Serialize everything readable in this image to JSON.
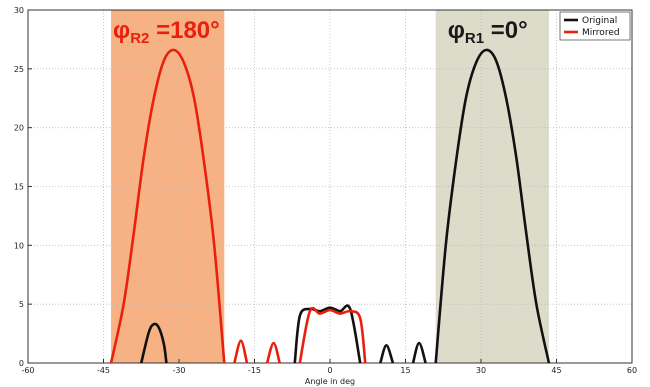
{
  "chart_data": {
    "type": "line",
    "title": "",
    "xlabel": "Angle in deg",
    "ylabel": "",
    "xlim": [
      -60,
      60
    ],
    "ylim": [
      0,
      30
    ],
    "xticks": [
      -60,
      -45,
      -30,
      -15,
      0,
      15,
      30,
      45,
      60
    ],
    "yticks": [
      0,
      5,
      10,
      15,
      20,
      25,
      30
    ],
    "grid": true,
    "grid_style": "dotted",
    "legend_position": "top-right",
    "series": [
      {
        "name": "Original",
        "color": "#111111",
        "lobes": [
          {
            "x": [
              -37.5,
              -36,
              -35,
              -34,
              -33,
              -32.5
            ],
            "y": [
              0,
              2.6,
              3.3,
              3.0,
              1.6,
              0
            ]
          },
          {
            "x": [
              -7,
              -6,
              -4,
              -2,
              0,
              2,
              4,
              6
            ],
            "y": [
              0,
              4.0,
              4.6,
              4.4,
              4.7,
              4.4,
              4.6,
              0
            ]
          },
          {
            "x": [
              10,
              11.2,
              12.5
            ],
            "y": [
              0,
              1.5,
              0
            ]
          },
          {
            "x": [
              16.5,
              17.7,
              19
            ],
            "y": [
              0,
              1.7,
              0
            ]
          },
          {
            "x": [
              21,
              23,
              25,
              27,
              29,
              31,
              33,
              35,
              37,
              39,
              41,
              43.5
            ],
            "y": [
              0,
              10,
              17,
              22.5,
              25.5,
              26.6,
              25.7,
              22.5,
              17.5,
              11,
              5,
              0
            ]
          }
        ]
      },
      {
        "name": "Mirrored",
        "color": "#e8200c",
        "lobes": [
          {
            "x": [
              -43.5,
              -41,
              -39,
              -37,
              -35,
              -33,
              -31,
              -29,
              -27,
              -25,
              -23,
              -21
            ],
            "y": [
              0,
              5,
              11,
              17.5,
              22.5,
              25.7,
              26.6,
              25.5,
              22.5,
              17,
              10,
              0
            ]
          },
          {
            "x": [
              -19,
              -17.7,
              -16.5
            ],
            "y": [
              0,
              1.9,
              0
            ]
          },
          {
            "x": [
              -12.5,
              -11.2,
              -10
            ],
            "y": [
              0,
              1.7,
              0
            ]
          },
          {
            "x": [
              -6,
              -4,
              -2,
              0,
              2,
              4,
              6,
              7
            ],
            "y": [
              0,
              4.4,
              4.2,
              4.5,
              4.2,
              4.4,
              3.8,
              0
            ]
          }
        ]
      }
    ],
    "shaded_regions": [
      {
        "x_from": -43.5,
        "x_to": -21,
        "color": "#f6b285",
        "label_main": "φ",
        "label_sub": "R2",
        "label_value": " =180°",
        "label_color": "#e8200c"
      },
      {
        "x_from": 21,
        "x_to": 43.5,
        "color": "#dddccb",
        "label_main": "φ",
        "label_sub": "R1",
        "label_value": " =0°",
        "label_color": "#1a1a1a"
      }
    ]
  }
}
